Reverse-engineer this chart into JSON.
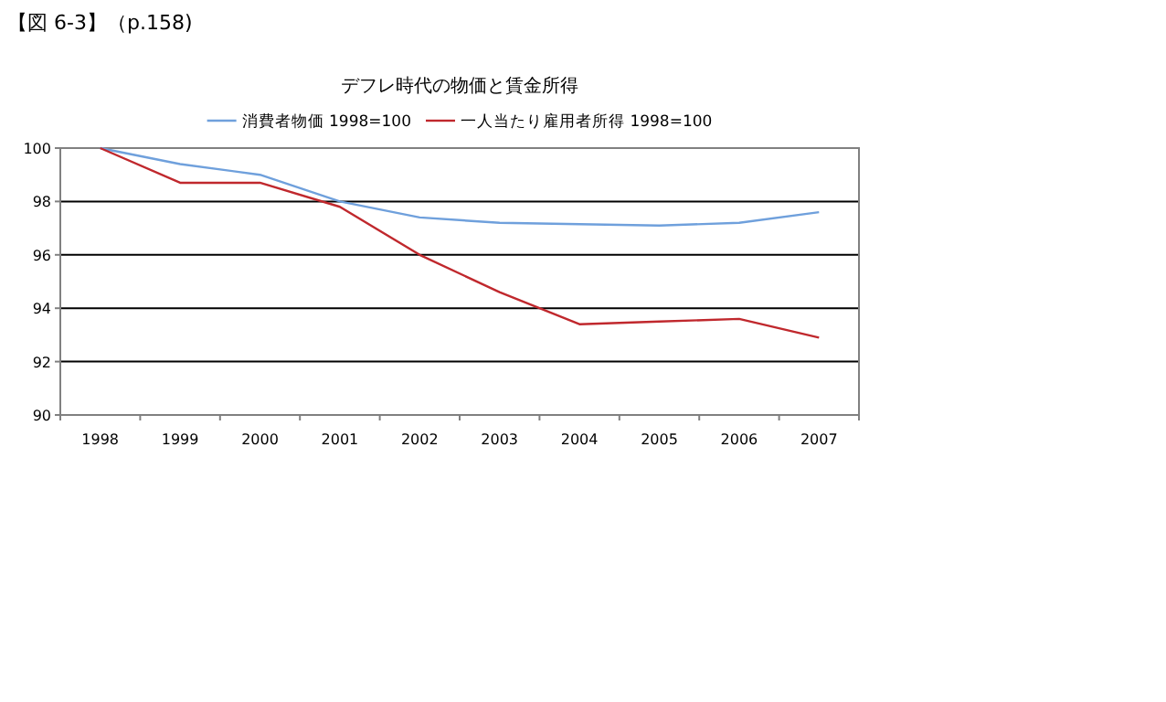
{
  "chart_data": {
    "type": "line",
    "title": "デフレ時代の物価と賃金所得",
    "annotations": [
      "【図 6-3】（p.158)"
    ],
    "categories": [
      "1998",
      "1999",
      "2000",
      "2001",
      "2002",
      "2003",
      "2004",
      "2005",
      "2006",
      "2007"
    ],
    "series": [
      {
        "name": "消費者物価 1998=100",
        "color": "#6fa0dc",
        "values": [
          100,
          99.4,
          99.0,
          98.0,
          97.4,
          97.2,
          97.15,
          97.1,
          97.2,
          97.6
        ]
      },
      {
        "name": "一人当たり雇用者所得 1998=100",
        "color": "#c0282d",
        "values": [
          100,
          98.7,
          98.7,
          97.8,
          96.0,
          94.6,
          93.4,
          93.5,
          93.6,
          92.9
        ]
      }
    ],
    "ylim": [
      90,
      100
    ],
    "yticks": [
      90,
      92,
      94,
      96,
      98,
      100
    ],
    "grid": "y",
    "legend": "top",
    "marker": "none"
  }
}
